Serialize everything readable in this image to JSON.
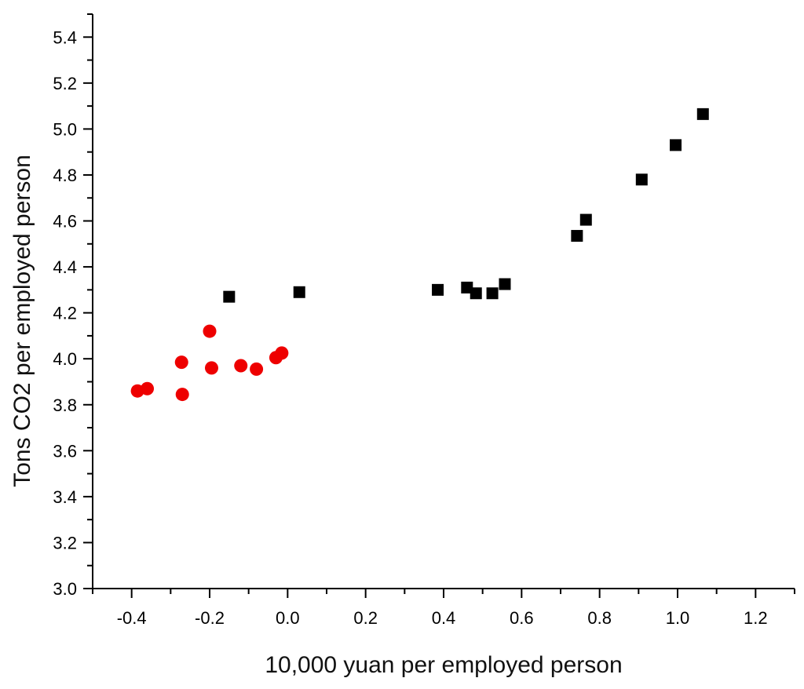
{
  "chart_data": {
    "type": "scatter",
    "title": "",
    "xlabel": "10,000 yuan per employed person",
    "ylabel": "Tons CO2 per employed person",
    "xlim": [
      -0.5,
      1.3
    ],
    "ylim": [
      3.0,
      5.5
    ],
    "x_ticks": [
      -0.4,
      -0.2,
      0.0,
      0.2,
      0.4,
      0.6,
      0.8,
      1.0,
      1.2
    ],
    "x_tick_labels": [
      "-0.4",
      "-0.2",
      "0.0",
      "0.2",
      "0.4",
      "0.6",
      "0.8",
      "1.0",
      "1.2"
    ],
    "y_ticks": [
      3.0,
      3.2,
      3.4,
      3.6,
      3.8,
      4.0,
      4.2,
      4.4,
      4.6,
      4.8,
      5.0,
      5.2,
      5.4
    ],
    "y_tick_labels": [
      "3.0",
      "3.2",
      "3.4",
      "3.6",
      "3.8",
      "4.0",
      "4.2",
      "4.4",
      "4.6",
      "4.8",
      "5.0",
      "5.2",
      "5.4"
    ],
    "grid": false,
    "legend": "none",
    "series": [
      {
        "marker": "square",
        "color": "#000000",
        "points": [
          [
            -0.15,
            4.27
          ],
          [
            0.03,
            4.29
          ],
          [
            0.385,
            4.3
          ],
          [
            0.46,
            4.31
          ],
          [
            0.483,
            4.285
          ],
          [
            0.525,
            4.285
          ],
          [
            0.557,
            4.325
          ],
          [
            0.742,
            4.535
          ],
          [
            0.765,
            4.605
          ],
          [
            0.908,
            4.78
          ],
          [
            0.995,
            4.93
          ],
          [
            1.065,
            5.065
          ]
        ]
      },
      {
        "marker": "circle",
        "color": "#ee0000",
        "points": [
          [
            -0.385,
            3.86
          ],
          [
            -0.36,
            3.87
          ],
          [
            -0.272,
            3.985
          ],
          [
            -0.27,
            3.845
          ],
          [
            -0.2,
            4.12
          ],
          [
            -0.195,
            3.96
          ],
          [
            -0.12,
            3.97
          ],
          [
            -0.08,
            3.955
          ],
          [
            -0.03,
            4.005
          ],
          [
            -0.015,
            4.025
          ]
        ]
      }
    ]
  }
}
